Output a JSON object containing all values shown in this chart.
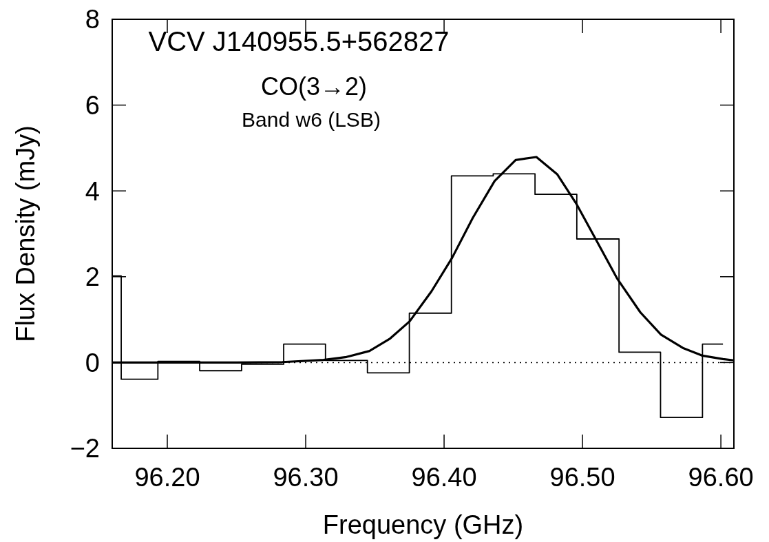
{
  "chart_data": {
    "type": "line",
    "title": "VCV J140955.5+562827",
    "subtitle": "CO(3→2)",
    "annotations": [
      "Band w6 (LSB)"
    ],
    "xlabel": "Frequency (GHz)",
    "ylabel": "Flux Density (mJy)",
    "xlim": [
      96.1602,
      96.6094
    ],
    "ylim": [
      -2,
      8
    ],
    "xticks": [
      {
        "value": 96.2,
        "label": "96.20"
      },
      {
        "value": 96.3,
        "label": "96.30"
      },
      {
        "value": 96.4,
        "label": "96.40"
      },
      {
        "value": 96.5,
        "label": "96.50"
      },
      {
        "value": 96.6,
        "label": "96.60"
      }
    ],
    "yticks": [
      {
        "value": -2,
        "label": "−2"
      },
      0,
      2,
      4,
      6,
      8
    ],
    "ref_lines": [
      {
        "axis": "y",
        "value": 0,
        "line_style": "dotted",
        "color": "#000000"
      }
    ],
    "series": [
      {
        "type": "step",
        "color": "#000000",
        "x": [
          96.1602,
          96.1667,
          96.1932,
          96.2234,
          96.2537,
          96.2841,
          96.3143,
          96.3446,
          96.3749,
          96.4053,
          96.4355,
          96.4657,
          96.4959,
          96.5264,
          96.5564,
          96.5867,
          96.6015
        ],
        "values": [
          2.02,
          -0.39,
          0.03,
          -0.19,
          -0.04,
          0.43,
          0.05,
          -0.24,
          1.15,
          4.35,
          4.4,
          3.92,
          2.88,
          0.24,
          -1.28,
          0.43,
          0.43
        ]
      },
      {
        "color": "#000000",
        "x": [
          96.1602,
          96.25,
          96.2831,
          96.3129,
          96.3295,
          96.3461,
          96.361,
          96.3751,
          96.3909,
          96.4058,
          96.4207,
          96.4365,
          96.4517,
          96.4667,
          96.4817,
          96.4954,
          96.5103,
          96.5252,
          96.5418,
          96.5567,
          96.5725,
          96.5866,
          96.6015,
          96.6094
        ],
        "values": [
          0,
          0,
          0.01,
          0.06,
          0.13,
          0.27,
          0.56,
          0.96,
          1.66,
          2.44,
          3.37,
          4.23,
          4.72,
          4.79,
          4.39,
          3.71,
          2.83,
          1.95,
          1.17,
          0.65,
          0.34,
          0.16,
          0.08,
          0.05
        ]
      }
    ]
  }
}
